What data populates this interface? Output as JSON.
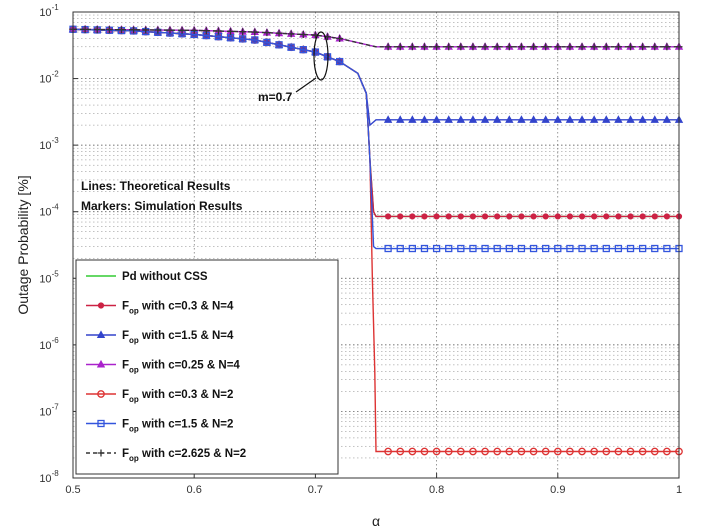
{
  "chart_data": {
    "type": "line",
    "xlabel": "α",
    "ylabel": "Outage Probability [%]",
    "xlim": [
      0.5,
      1
    ],
    "ylim": [
      1e-08,
      0.1
    ],
    "yscale": "log",
    "grid": true,
    "x_ticks": [
      "0.5",
      "0.6",
      "0.7",
      "0.8",
      "0.9",
      "1"
    ],
    "x_tick_values": [
      0.5,
      0.6,
      0.7,
      0.8,
      0.9,
      1.0
    ],
    "y_tick_values": [
      1e-08,
      1e-07,
      1e-06,
      1e-05,
      0.0001,
      0.001,
      0.01,
      0.1
    ],
    "y_tick_exponents": [
      "-8",
      "-7",
      "-6",
      "-5",
      "-4",
      "-3",
      "-2",
      "-1"
    ],
    "y_tick_base": "10",
    "annotations": {
      "m_label": "m=0.7",
      "lines_note": "Lines: Theoretical Results",
      "markers_note": "Markers: Simulation Results"
    },
    "legend_position": "bottom-left",
    "series": [
      {
        "name": "Pd without CSS",
        "color": "#33cc33",
        "marker": "none",
        "x": [
          0.5,
          0.55,
          0.6,
          0.65,
          0.7,
          0.72,
          0.735,
          0.742,
          0.745,
          0.748,
          0.75,
          1.0
        ],
        "y": [
          0.055,
          0.052,
          0.046,
          0.038,
          0.025,
          0.018,
          0.012,
          0.006,
          0.0006,
          0.0001,
          8.5e-05,
          8.5e-05
        ]
      },
      {
        "name_prefix": "F",
        "name_sub": "op",
        "name_suffix": " with c=0.3 & N=4",
        "color": "#cc2244",
        "marker": "dot",
        "x": [
          0.5,
          0.55,
          0.6,
          0.65,
          0.7,
          0.72,
          0.735,
          0.742,
          0.745,
          0.748,
          0.75,
          1.0
        ],
        "y": [
          0.055,
          0.052,
          0.046,
          0.038,
          0.025,
          0.018,
          0.012,
          0.006,
          0.0006,
          0.0001,
          8.5e-05,
          8.5e-05
        ]
      },
      {
        "name_prefix": "F",
        "name_sub": "op",
        "name_suffix": " with c=1.5 & N=4",
        "color": "#3344cc",
        "marker": "triangle",
        "x": [
          0.5,
          0.55,
          0.6,
          0.65,
          0.7,
          0.72,
          0.735,
          0.742,
          0.745,
          0.75,
          1.0
        ],
        "y": [
          0.055,
          0.052,
          0.046,
          0.038,
          0.025,
          0.018,
          0.012,
          0.006,
          0.002,
          0.0024,
          0.0024
        ]
      },
      {
        "name_prefix": "F",
        "name_sub": "op",
        "name_suffix": " with c=0.25 & N=4",
        "color": "#aa22cc",
        "marker": "triangle",
        "x": [
          0.5,
          0.6,
          0.65,
          0.7,
          0.72,
          0.74,
          0.75,
          1.0
        ],
        "y": [
          0.055,
          0.053,
          0.05,
          0.045,
          0.04,
          0.033,
          0.03,
          0.03
        ]
      },
      {
        "name_prefix": "F",
        "name_sub": "op",
        "name_suffix": " with c=0.3 & N=2",
        "color": "#dd3333",
        "marker": "circle",
        "x": [
          0.5,
          0.55,
          0.6,
          0.65,
          0.7,
          0.72,
          0.735,
          0.742,
          0.745,
          0.747,
          0.749,
          0.75,
          1.0
        ],
        "y": [
          0.055,
          0.052,
          0.046,
          0.038,
          0.025,
          0.018,
          0.012,
          0.006,
          0.0006,
          1e-05,
          4e-07,
          2.5e-08,
          2.5e-08
        ]
      },
      {
        "name_prefix": "F",
        "name_sub": "op",
        "name_suffix": " with c=1.5 & N=2",
        "color": "#3355dd",
        "marker": "square",
        "x": [
          0.5,
          0.55,
          0.6,
          0.65,
          0.7,
          0.72,
          0.735,
          0.742,
          0.745,
          0.748,
          0.75,
          1.0
        ],
        "y": [
          0.055,
          0.052,
          0.046,
          0.038,
          0.025,
          0.018,
          0.012,
          0.006,
          0.0006,
          3e-05,
          2.8e-05,
          2.8e-05
        ]
      },
      {
        "name_prefix": "F",
        "name_sub": "op",
        "name_suffix": " with c=2.625 & N=2",
        "color": "#333333",
        "marker": "plus",
        "dashed": true,
        "x": [
          0.5,
          0.6,
          0.65,
          0.7,
          0.72,
          0.74,
          0.75,
          1.0
        ],
        "y": [
          0.055,
          0.053,
          0.05,
          0.045,
          0.04,
          0.033,
          0.03,
          0.03
        ]
      }
    ]
  }
}
